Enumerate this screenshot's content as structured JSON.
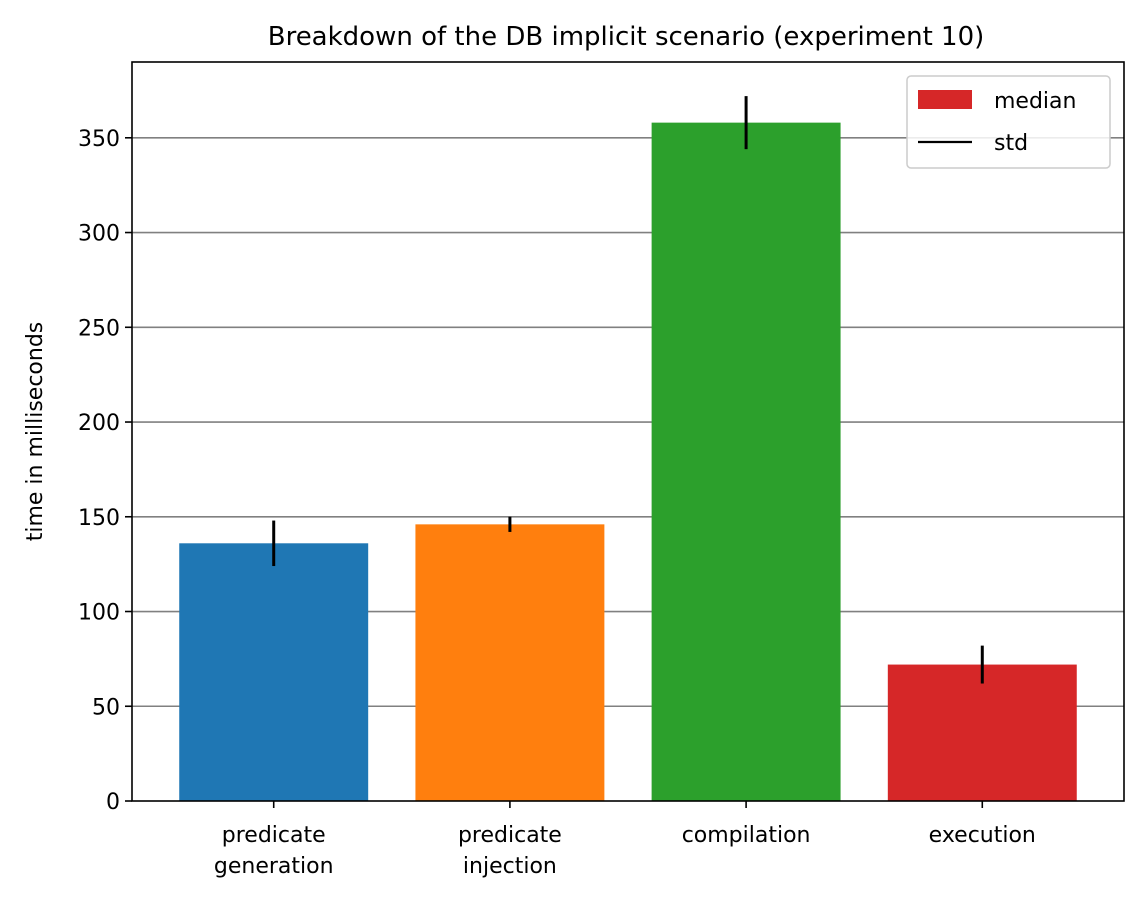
{
  "chart_data": {
    "type": "bar",
    "title": "Breakdown of the DB implicit scenario (experiment 10)",
    "xlabel": "",
    "ylabel": "time in milliseconds",
    "ylim": [
      0,
      390
    ],
    "yticks": [
      0,
      50,
      100,
      150,
      200,
      250,
      300,
      350
    ],
    "grid": "horizontal",
    "legend_position": "top-right",
    "categories": [
      [
        "predicate",
        "generation"
      ],
      [
        "predicate",
        "injection"
      ],
      [
        "compilation"
      ],
      [
        "execution"
      ]
    ],
    "series": [
      {
        "name": "median",
        "values": [
          136,
          146,
          358,
          72
        ]
      },
      {
        "name": "std",
        "values": [
          12,
          4,
          14,
          10
        ]
      }
    ],
    "colors": [
      "#1f77b4",
      "#ff7f0e",
      "#2ca02c",
      "#d62728"
    ],
    "legend": [
      {
        "label": "median",
        "swatch": "patch",
        "color": "#d62728"
      },
      {
        "label": "std",
        "swatch": "line",
        "color": "#000000"
      }
    ]
  }
}
